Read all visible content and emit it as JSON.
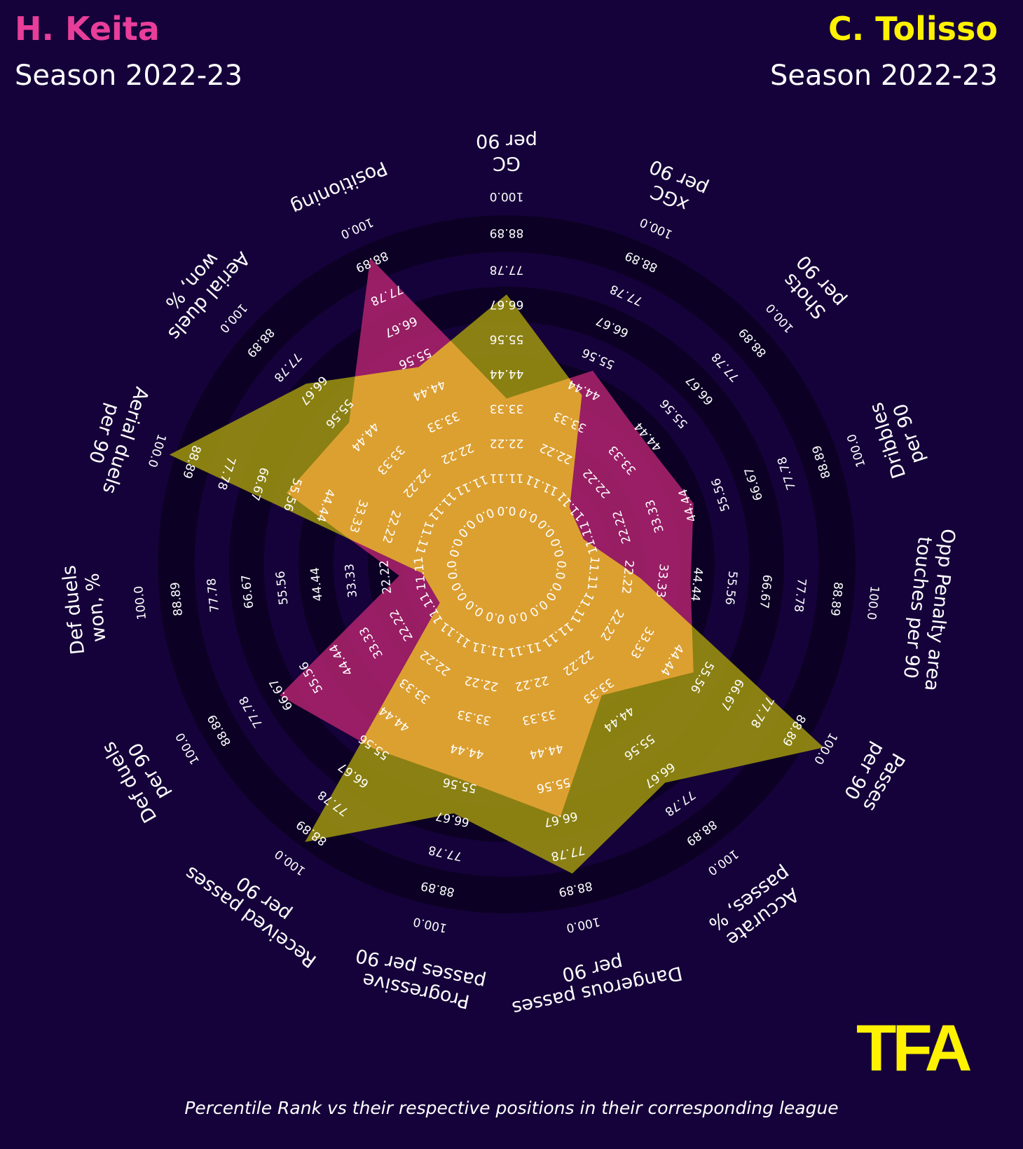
{
  "players": [
    {
      "name": "H. Keita",
      "season": "Season 2022-23",
      "color": "#e83e9a"
    },
    {
      "name": "C. Tolisso",
      "season": "Season 2022-23",
      "color": "#fff200"
    }
  ],
  "logo_text": "TFA",
  "footnote": "Percentile Rank vs their respective positions in their corresponding league",
  "chart_data": {
    "type": "radar",
    "title": "",
    "range": [
      0,
      100
    ],
    "ring_labels": [
      "0.0",
      "11.11",
      "22.22",
      "33.33",
      "44.44",
      "55.56",
      "66.67",
      "77.78",
      "88.89",
      "100.0"
    ],
    "categories": [
      "GC\nper 90",
      "xGC\nper 90",
      "Shots\nper 90",
      "Dribbles\nper 90",
      "Opp Penalty area\ntouches per 90",
      "Passes\nper 90",
      "Accurate\npasses, %",
      "Dangerous passes\nper 90",
      "Progressive\npasses per 90",
      "Received passes\nper 90",
      "Def duels\nper 90",
      "Def duels\nwon, %",
      "Aerial duels\nper 90",
      "Aerial duels\nwon, %",
      "Positioning"
    ],
    "series": [
      {
        "name": "H. Keita",
        "fill": "#b0236e",
        "fill_opacity": 0.85,
        "values": [
          43,
          55,
          48,
          51,
          48,
          56,
          42,
          67,
          57,
          59,
          68,
          28,
          60,
          55,
          87
        ]
      },
      {
        "name": "C. Tolisso",
        "fill": "#a0960e",
        "fill_opacity": 0.85,
        "values": [
          70,
          48,
          22,
          21,
          35,
          95,
          70,
          82,
          66,
          89,
          20,
          22,
          92,
          70,
          56
        ]
      }
    ],
    "overlap_color": "#dca031",
    "grid": true,
    "legend": "top-left and top-right titles"
  }
}
